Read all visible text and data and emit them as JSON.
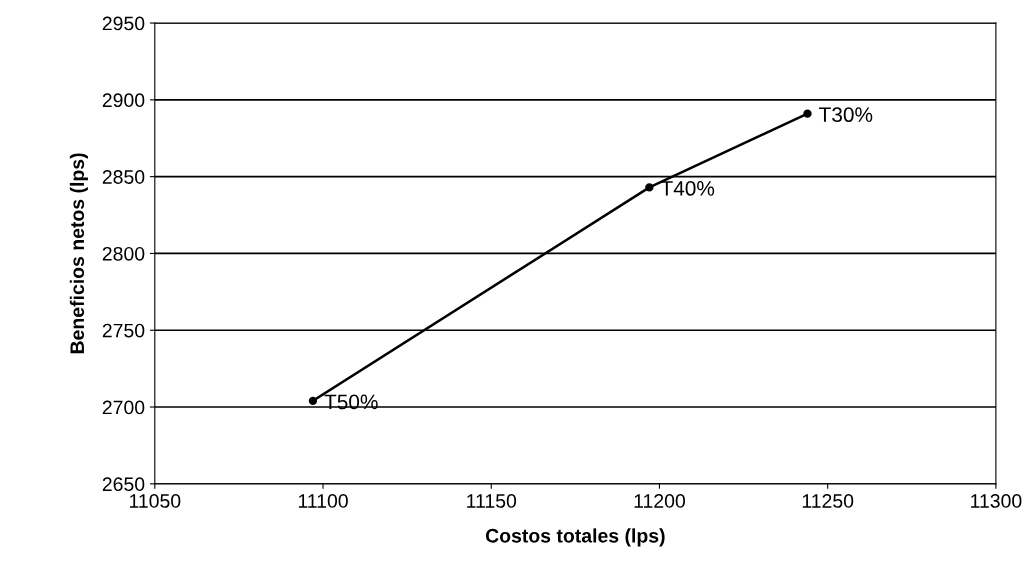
{
  "chart_data": {
    "type": "line",
    "xlabel": "Costos totales (lps)",
    "ylabel": "Beneficios netos (lps)",
    "x": [
      11097,
      11197,
      11244
    ],
    "series": [
      {
        "color": "#000000",
        "values": [
          2704,
          2843,
          2891
        ]
      }
    ],
    "xlim": [
      11050,
      11300
    ],
    "xticks": [
      11050,
      11100,
      11150,
      11200,
      11250,
      11300
    ],
    "ylim": [
      2650,
      2950
    ],
    "yticks": [
      2650,
      2700,
      2750,
      2800,
      2850,
      2900,
      2950
    ],
    "grid": "y",
    "marker": "circle",
    "line_style": "solid",
    "annotations": [
      {
        "text": "T50%",
        "x": 11097,
        "y": 2704
      },
      {
        "text": "T40%",
        "x": 11197,
        "y": 2843
      },
      {
        "text": "T30%",
        "x": 11244,
        "y": 2891
      }
    ]
  }
}
